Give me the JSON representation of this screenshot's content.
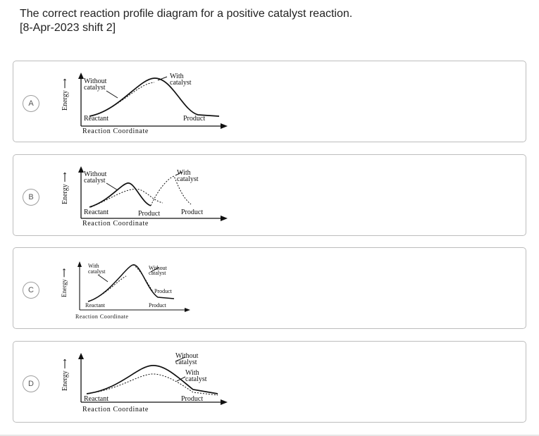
{
  "question": {
    "line1": "The correct reaction profile diagram for a positive catalyst reaction.",
    "line2": "[8-Apr-2023 shift 2]"
  },
  "options": [
    {
      "letter": "A",
      "energy_label": "Energy",
      "arrow_glyph": "⟶",
      "labels": {
        "without1": "Without",
        "without2": "catalyst",
        "with1": "With",
        "with2": "catalyst",
        "reactant": "Reactant",
        "product": "Product",
        "xaxis": "Reaction Coordinate"
      }
    },
    {
      "letter": "B",
      "energy_label": "Energy",
      "arrow_glyph": "⟶",
      "labels": {
        "without1": "Without",
        "without2": "catalyst",
        "with1": "With",
        "with2": "catalyst",
        "reactant": "Reactant",
        "product_a": "Product",
        "product_b": "Product",
        "xaxis": "Reaction Coordinate"
      }
    },
    {
      "letter": "C",
      "energy_label": "Energy",
      "arrow_glyph": "⟶",
      "labels": {
        "with1": "With",
        "with2": "catalyst",
        "without1": "Without",
        "without2": "catalyst",
        "product_mid": "Product",
        "reactant": "Reactant",
        "product": "Product",
        "xaxis": "Reaction Coordinate"
      }
    },
    {
      "letter": "D",
      "energy_label": "Energy",
      "arrow_glyph": "⟶",
      "labels": {
        "without1": "Without",
        "without2": "catalyst",
        "with1": "With",
        "with2": "catalyst",
        "reactant": "Reactant",
        "product": "Product",
        "xaxis": "Reaction Coordinate"
      }
    }
  ]
}
